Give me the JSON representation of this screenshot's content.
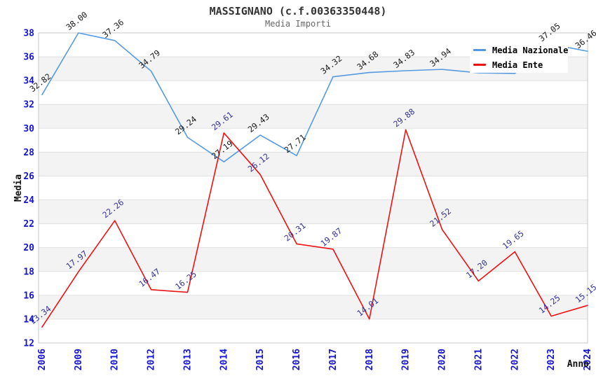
{
  "header": {
    "title": "MASSIGNANO (c.f.00363350448)",
    "subtitle": "Media Importi"
  },
  "legend": {
    "items": [
      {
        "label": "Media Nazionale",
        "color": "#559ae0"
      },
      {
        "label": "Media Ente",
        "color": "#ee1111"
      }
    ]
  },
  "chart_data": {
    "type": "line",
    "x": [
      "2006",
      "2009",
      "2010",
      "2012",
      "2013",
      "2014",
      "2015",
      "2016",
      "2017",
      "2018",
      "2019",
      "2020",
      "2021",
      "2022",
      "2023",
      "2024"
    ],
    "series": [
      {
        "name": "Media Nazionale",
        "color": "#559ae0",
        "label_color": "#1a1a1a",
        "values": [
          32.82,
          38.0,
          37.36,
          34.79,
          29.24,
          27.19,
          29.43,
          27.71,
          34.32,
          34.68,
          34.83,
          34.94,
          34.65,
          34.6,
          37.05,
          36.46
        ],
        "labels": [
          "32.82",
          "38.00",
          "37.36",
          "34.79",
          "29.24",
          "27.19",
          "29.43",
          "27.71",
          "34.32",
          "34.68",
          "34.83",
          "34.94",
          null,
          null,
          "37.05",
          "36.46"
        ]
      },
      {
        "name": "Media Ente",
        "color": "#ee1111",
        "label_color": "#333399",
        "values": [
          13.34,
          17.97,
          22.26,
          16.47,
          16.25,
          29.61,
          26.12,
          20.31,
          19.87,
          14.01,
          29.88,
          21.52,
          17.2,
          19.65,
          14.25,
          15.15
        ],
        "labels": [
          "13.34",
          "17.97",
          "22.26",
          "16.47",
          "16.25",
          "29.61",
          "26.12",
          "20.31",
          "19.87",
          "14.01",
          "29.88",
          "21.52",
          "17.20",
          "19.65",
          "14.25",
          "15.15"
        ]
      }
    ],
    "xlabel": "Anno",
    "ylabel": "Media",
    "ylim": [
      12,
      38
    ],
    "yticks": [
      38,
      36,
      34,
      32,
      30,
      28,
      26,
      24,
      22,
      20,
      18,
      16,
      14,
      12
    ],
    "grid_bands_top_values": [
      36,
      32,
      28,
      24,
      20,
      16
    ],
    "legend_position": "top-right",
    "colors": {
      "tick_label": "#1414cc",
      "grid_band": "#f3f3f3",
      "grid_line": "#e0e0e0",
      "plot_border": "#c8c8c8"
    }
  }
}
